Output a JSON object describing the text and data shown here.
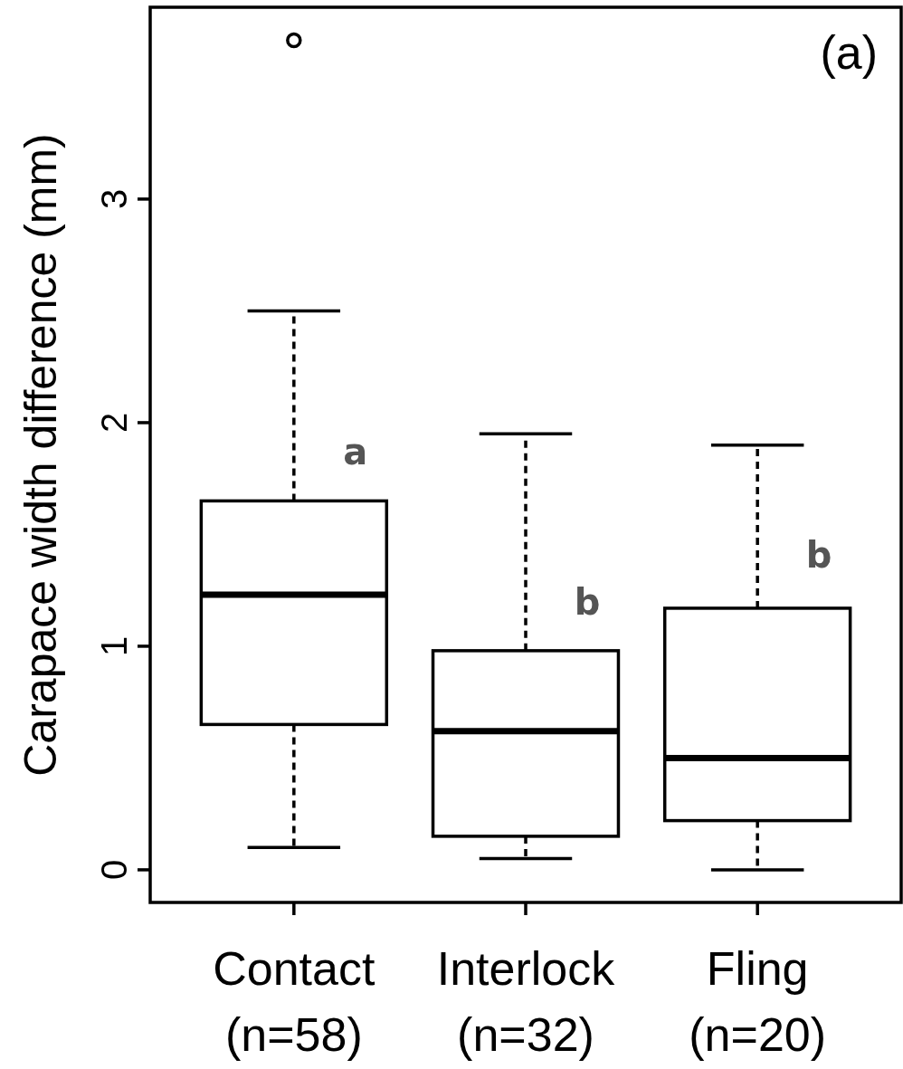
{
  "chart_data": {
    "type": "box",
    "ylabel": "Carapace width difference (mm)",
    "categories": [
      "Contact\n(n=58)",
      "Interlock\n(n=32)",
      "Fling\n(n=20)"
    ],
    "boxes": [
      {
        "low": 0.1,
        "q1": 0.65,
        "median": 1.23,
        "q3": 1.65,
        "high": 2.5,
        "outliers": [
          3.71
        ]
      },
      {
        "low": 0.05,
        "q1": 0.15,
        "median": 0.62,
        "q3": 0.98,
        "high": 1.95
      },
      {
        "low": 0,
        "q1": 0.22,
        "median": 0.5,
        "q3": 1.17,
        "high": 1.9
      }
    ],
    "ylim": [
      -0.146,
      3.858
    ],
    "yticks": [
      0,
      1,
      2,
      3
    ],
    "grid": false,
    "line_style": "dashed",
    "annotations": [
      "(a)",
      {
        "text": "a",
        "x": "Contact\n(n=58)",
        "y": 1.87
      },
      {
        "text": "b",
        "x": "Interlock\n(n=32)",
        "y": 1.2
      },
      {
        "text": "b",
        "x": "Fling\n(n=20)",
        "y": 1.41
      }
    ]
  }
}
